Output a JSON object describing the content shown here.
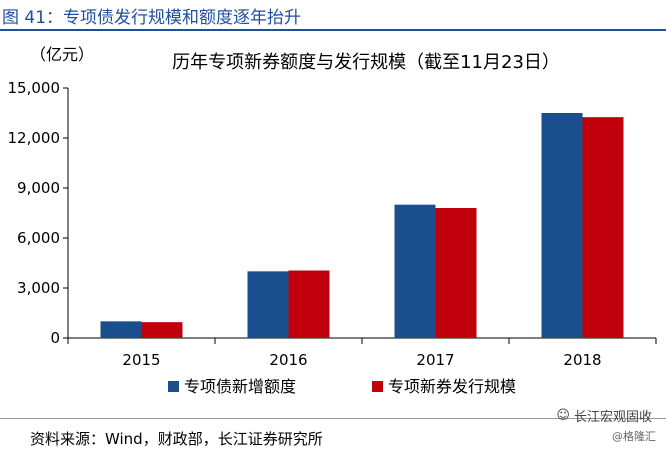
{
  "figure": {
    "label": "图 41：专项债发行规模和额度逐年抬升",
    "source": "资料来源：Wind，财政部，长江证券研究所",
    "watermark": "长江宏观固收",
    "watermark2": "@格隆汇",
    "colors": {
      "header": "#1f4e9c",
      "series1": "#1a4e8c",
      "series2": "#c0000c"
    }
  },
  "chart_data": {
    "type": "bar",
    "title": "历年专项新券额度与发行规模（截至11月23日）",
    "unit_label": "（亿元）",
    "categories": [
      "2015",
      "2016",
      "2017",
      "2018"
    ],
    "series": [
      {
        "name": "专项债新增额度",
        "values": [
          1000,
          4000,
          8000,
          13500
        ]
      },
      {
        "name": "专项新券发行规模",
        "values": [
          950,
          4050,
          7800,
          13250
        ]
      }
    ],
    "ylim": [
      0,
      15000
    ],
    "yticks": [
      "0",
      "3,000",
      "6,000",
      "9,000",
      "12,000",
      "15,000"
    ],
    "ytick_values": [
      0,
      3000,
      6000,
      9000,
      12000,
      15000
    ],
    "grid": false,
    "legend_position": "bottom"
  }
}
